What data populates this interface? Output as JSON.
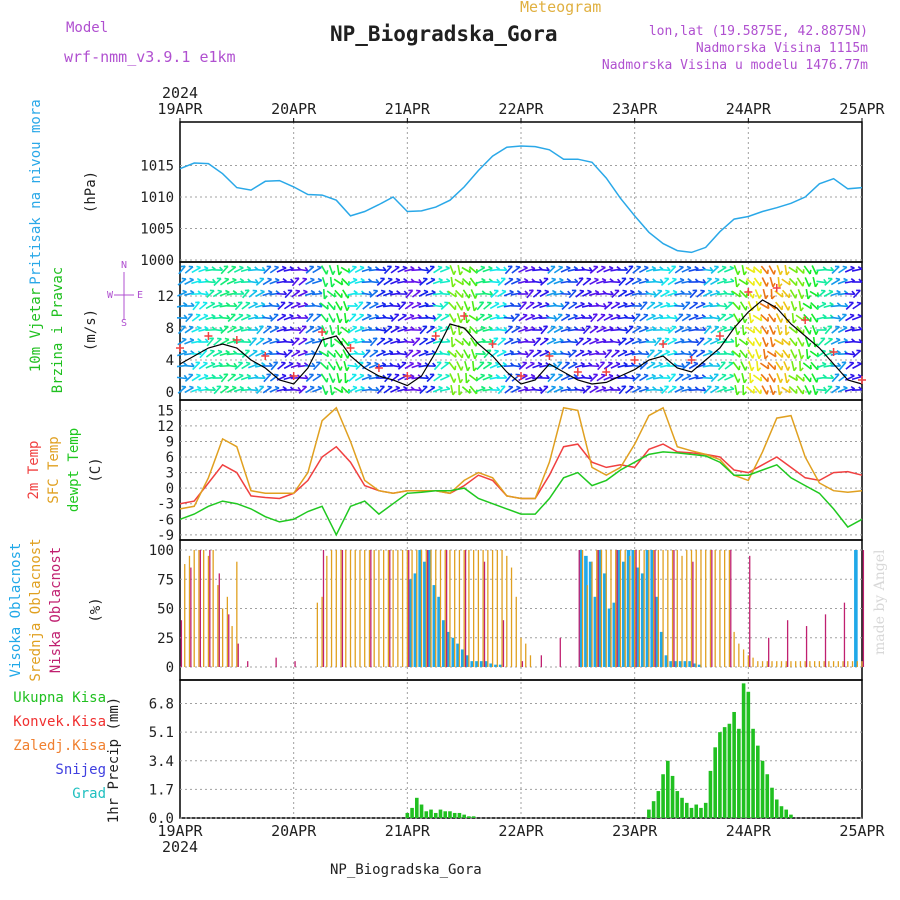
{
  "header": {
    "model_label": "Model",
    "model_name": "wrf-nmm_v3.9.1 e1km",
    "product": "Meteogram",
    "station": "NP_Biogradska_Gora",
    "lonlat": "lon,lat (19.5875E, 42.8875N)",
    "altitude": "Nadmorska Visina 1115m",
    "model_altitude": "Nadmorska Visina u modelu 1476.77m",
    "footer_station": "NP_Biogradska_Gora",
    "watermark": "made by Angel"
  },
  "colors": {
    "pressure": "#2aa8e8",
    "speed_line": "#000000",
    "gust_marker": "#f04040",
    "temp2m": "#f04040",
    "sfc_temp": "#e0a020",
    "dewpoint": "#20c820",
    "cloud_high": "#20a8e8",
    "cloud_mid": "#e0a020",
    "cloud_low": "#c02070",
    "precip_total": "#20c020",
    "precip_conv": "#f03030",
    "precip_frz": "#f08030",
    "precip_snow": "#4040e0",
    "precip_graupel": "#20c0c0",
    "grid": "#a0a0a0",
    "axis_label_purple": "#b050d0"
  },
  "chart_data": [
    {
      "type": "line",
      "panel": "pressure",
      "x_dates": [
        "19APR",
        "20APR",
        "21APR",
        "22APR",
        "23APR",
        "24APR",
        "25APR"
      ],
      "year": "2024",
      "ylabel_main": "Pritisak na nivou mora",
      "ylabel_unit": "(hPa)",
      "ylim": [
        1000,
        1020
      ],
      "yticks": [
        1000,
        1005,
        1010,
        1015
      ],
      "series": [
        {
          "name": "Pritisak na nivou mora",
          "x": [
            0,
            3,
            6,
            9,
            12,
            15,
            18,
            21,
            24,
            27,
            30,
            33,
            36,
            39,
            42,
            45,
            48,
            51,
            54,
            57,
            60,
            63,
            66,
            69,
            72,
            75,
            78,
            81,
            84,
            87,
            90,
            93,
            96,
            99,
            102,
            105,
            108,
            111,
            114,
            117,
            120,
            123,
            126,
            129,
            132,
            135,
            138,
            141,
            144
          ],
          "values": [
            1014.5,
            1015.4,
            1015.3,
            1013.7,
            1011.5,
            1011.1,
            1012.5,
            1012.6,
            1011.6,
            1010.4,
            1010.3,
            1009.5,
            1007.0,
            1007.7,
            1008.8,
            1010.0,
            1007.7,
            1007.8,
            1008.4,
            1009.5,
            1011.6,
            1014.2,
            1016.5,
            1017.9,
            1018.1,
            1018.0,
            1017.5,
            1016.0,
            1016.0,
            1015.5,
            1013.0,
            1009.8,
            1007.0,
            1004.4,
            1002.6,
            1001.5,
            1001.2,
            1002.0,
            1004.5,
            1006.5,
            1006.9,
            1007.7,
            1008.3,
            1009.0,
            1010.0,
            1012.1,
            1012.9,
            1011.3,
            1011.5
          ]
        }
      ]
    },
    {
      "type": "line",
      "panel": "wind",
      "ylabel_main": "10m Vjetar",
      "ylabel_sub": "Brzina i Pravac",
      "ylabel_unit": "(m/s)",
      "compass_labels": [
        "N",
        "W",
        "E",
        "S"
      ],
      "ylim": [
        0,
        14
      ],
      "yticks": [
        0,
        4,
        8,
        12
      ],
      "series": [
        {
          "name": "Brzina",
          "x": [
            0,
            3,
            6,
            9,
            12,
            15,
            18,
            21,
            24,
            27,
            30,
            33,
            36,
            39,
            42,
            45,
            48,
            51,
            54,
            57,
            60,
            63,
            66,
            69,
            72,
            75,
            78,
            81,
            84,
            87,
            90,
            93,
            96,
            99,
            102,
            105,
            108,
            111,
            114,
            117,
            120,
            123,
            126,
            129,
            132,
            135,
            138,
            141,
            144
          ],
          "values": [
            3.5,
            4.5,
            5.5,
            6.0,
            5.5,
            4.0,
            3.0,
            1.5,
            1.0,
            3.0,
            6.5,
            7.0,
            4.5,
            3.0,
            2.0,
            1.5,
            0.8,
            2.0,
            5.0,
            8.5,
            8.0,
            6.0,
            4.5,
            2.5,
            1.0,
            1.5,
            3.5,
            2.5,
            1.5,
            1.0,
            1.2,
            2.0,
            2.8,
            4.0,
            4.5,
            3.0,
            2.5,
            4.0,
            5.5,
            8.0,
            10.0,
            11.5,
            10.5,
            8.5,
            7.0,
            5.5,
            3.5,
            1.5,
            1.0
          ]
        },
        {
          "name": "Udari",
          "x": [
            0,
            6,
            12,
            18,
            24,
            30,
            36,
            42,
            48,
            54,
            60,
            66,
            72,
            78,
            84,
            90,
            96,
            102,
            108,
            114,
            120,
            126,
            132,
            138,
            144
          ],
          "values": [
            5.5,
            7.0,
            6.5,
            4.5,
            2.0,
            7.5,
            5.5,
            3.0,
            2.0,
            7.0,
            9.5,
            6.0,
            2.0,
            4.5,
            2.5,
            2.5,
            4.0,
            6.0,
            4.0,
            7.0,
            12.5,
            13.0,
            9.0,
            5.0,
            1.5
          ]
        }
      ]
    },
    {
      "type": "line",
      "panel": "temperature",
      "ylabel_series": [
        "2m Temp",
        "SFC Temp",
        "dewpt Temp"
      ],
      "ylabel_unit": "(C)",
      "ylim": [
        -10,
        17
      ],
      "yticks": [
        -9,
        -6,
        -3,
        0,
        3,
        6,
        9,
        12,
        15
      ],
      "x": [
        0,
        3,
        6,
        9,
        12,
        15,
        18,
        21,
        24,
        27,
        30,
        33,
        36,
        39,
        42,
        45,
        48,
        51,
        54,
        57,
        60,
        63,
        66,
        69,
        72,
        75,
        78,
        81,
        84,
        87,
        90,
        93,
        96,
        99,
        102,
        105,
        108,
        111,
        114,
        117,
        120,
        123,
        126,
        129,
        132,
        135,
        138,
        141,
        144
      ],
      "series": [
        {
          "name": "2m Temp",
          "values": [
            -3.0,
            -2.5,
            1.0,
            4.5,
            3.0,
            -1.5,
            -1.8,
            -2.0,
            -1.0,
            1.5,
            6.0,
            8.0,
            5.0,
            0.5,
            -0.5,
            -1.0,
            -0.5,
            -0.5,
            -0.5,
            -1.0,
            0.5,
            2.5,
            1.5,
            -1.5,
            -2.0,
            -2.0,
            2.5,
            8.0,
            8.5,
            5.0,
            4.0,
            4.5,
            4.0,
            7.5,
            8.5,
            7.0,
            6.8,
            6.5,
            6.0,
            3.5,
            3.0,
            4.5,
            6.0,
            4.0,
            2.0,
            1.5,
            3.0,
            3.2,
            2.5
          ]
        },
        {
          "name": "SFC Temp",
          "values": [
            -4.0,
            -3.5,
            2.0,
            9.5,
            8.0,
            -0.5,
            -1.0,
            -1.0,
            -1.0,
            3.0,
            13.0,
            15.5,
            9.0,
            1.5,
            -0.5,
            -1.0,
            -0.5,
            -0.5,
            -0.5,
            -1.0,
            1.5,
            3.0,
            2.0,
            -1.5,
            -2.0,
            -2.0,
            5.0,
            15.5,
            15.0,
            4.0,
            2.5,
            4.0,
            8.5,
            14.0,
            15.5,
            8.0,
            7.2,
            6.5,
            5.5,
            2.5,
            1.5,
            7.0,
            13.5,
            14.0,
            6.0,
            1.0,
            -0.5,
            -0.8,
            -0.5
          ]
        },
        {
          "name": "dewpt Temp",
          "values": [
            -6.0,
            -5.0,
            -3.5,
            -2.5,
            -3.0,
            -4.0,
            -5.5,
            -6.5,
            -6.0,
            -4.5,
            -3.5,
            -9.0,
            -3.5,
            -2.5,
            -5.0,
            -3.0,
            -1.0,
            -0.8,
            -0.5,
            -0.5,
            0.0,
            -2.0,
            -3.0,
            -4.0,
            -5.0,
            -5.0,
            -2.0,
            2.0,
            3.0,
            0.5,
            1.5,
            3.5,
            5.0,
            6.5,
            7.0,
            6.8,
            6.5,
            6.2,
            5.0,
            2.5,
            2.5,
            3.5,
            4.5,
            2.0,
            0.5,
            -1.0,
            -4.0,
            -7.5,
            -6.0
          ]
        }
      ]
    },
    {
      "type": "bar",
      "panel": "clouds",
      "ylabel_series": [
        "Visoka Oblacnost",
        "Srednja Oblacnost",
        "Niska Oblacnost"
      ],
      "ylabel_unit": "(%)",
      "ylim": [
        0,
        100
      ],
      "yticks": [
        0,
        25,
        50,
        75,
        100
      ],
      "series": [
        {
          "name": "Visoka Oblacnost",
          "x": [
            49,
            50,
            51,
            52,
            53,
            54,
            55,
            56,
            57,
            58,
            59,
            60,
            61,
            62,
            63,
            64,
            65,
            66,
            67,
            68,
            85,
            86,
            87,
            88,
            89,
            90,
            91,
            92,
            93,
            94,
            95,
            96,
            97,
            98,
            99,
            100,
            101,
            102,
            103,
            104,
            105,
            106,
            107,
            108,
            109,
            110,
            143
          ],
          "values": [
            75,
            80,
            100,
            90,
            100,
            70,
            60,
            40,
            30,
            25,
            20,
            15,
            10,
            5,
            5,
            5,
            5,
            3,
            2,
            2,
            100,
            95,
            90,
            60,
            100,
            80,
            50,
            55,
            100,
            90,
            100,
            100,
            85,
            80,
            100,
            100,
            60,
            30,
            10,
            5,
            5,
            5,
            5,
            5,
            3,
            2,
            100
          ]
        },
        {
          "name": "Srednja Oblacnost",
          "x": [
            1,
            2,
            3,
            4,
            5,
            6,
            7,
            8,
            9,
            10,
            11,
            12,
            29,
            30,
            31,
            32,
            33,
            34,
            35,
            36,
            37,
            38,
            39,
            40,
            41,
            42,
            43,
            44,
            45,
            46,
            47,
            48,
            49,
            50,
            51,
            52,
            53,
            54,
            55,
            56,
            57,
            58,
            59,
            60,
            61,
            62,
            63,
            64,
            65,
            66,
            67,
            68,
            69,
            70,
            71,
            72,
            73,
            74,
            85,
            86,
            87,
            88,
            89,
            90,
            91,
            92,
            93,
            94,
            95,
            96,
            97,
            98,
            99,
            100,
            101,
            102,
            103,
            104,
            105,
            106,
            107,
            108,
            109,
            110,
            111,
            112,
            113,
            114,
            115,
            116,
            117,
            118,
            119,
            120,
            121,
            122,
            123,
            124,
            125,
            126,
            127,
            128,
            129,
            130,
            131,
            132,
            133,
            134,
            135,
            136,
            137,
            138,
            139,
            140,
            141,
            142,
            143,
            144
          ],
          "values": [
            88,
            95,
            100,
            100,
            100,
            95,
            100,
            70,
            50,
            60,
            35,
            90,
            55,
            60,
            95,
            100,
            100,
            100,
            100,
            100,
            100,
            100,
            100,
            100,
            100,
            100,
            100,
            100,
            100,
            100,
            100,
            100,
            100,
            100,
            100,
            100,
            100,
            100,
            100,
            100,
            100,
            100,
            100,
            100,
            100,
            100,
            100,
            100,
            100,
            100,
            100,
            100,
            95,
            85,
            60,
            25,
            20,
            10,
            100,
            70,
            90,
            100,
            100,
            100,
            100,
            100,
            100,
            100,
            95,
            100,
            100,
            100,
            100,
            100,
            100,
            100,
            100,
            100,
            100,
            95,
            100,
            100,
            100,
            100,
            100,
            100,
            100,
            100,
            100,
            100,
            30,
            20,
            15,
            10,
            8,
            5,
            5,
            5,
            5,
            5,
            5,
            5,
            5,
            5,
            5,
            5,
            5,
            5,
            5,
            5,
            5,
            5,
            5,
            5,
            5,
            5,
            5,
            5
          ]
        },
        {
          "name": "Niska Oblacnost",
          "x": [
            0,
            2,
            4,
            6,
            8,
            10,
            12,
            14,
            20,
            24,
            30,
            34,
            40,
            44,
            48,
            52,
            56,
            60,
            64,
            68,
            72,
            76,
            80,
            84,
            88,
            92,
            96,
            100,
            104,
            108,
            112,
            116,
            120,
            124,
            128,
            132,
            136,
            140,
            144
          ],
          "values": [
            40,
            85,
            100,
            100,
            80,
            45,
            20,
            5,
            8,
            5,
            100,
            100,
            100,
            100,
            100,
            100,
            100,
            100,
            90,
            40,
            5,
            10,
            25,
            100,
            100,
            100,
            100,
            100,
            100,
            90,
            100,
            100,
            95,
            25,
            40,
            35,
            45,
            55,
            100
          ]
        }
      ]
    },
    {
      "type": "bar",
      "panel": "precip",
      "ylabel": "1hr Precip (mm)",
      "legend": [
        "Ukupna Kisa",
        "Konvek.Kisa",
        "Zaledj.Kisa",
        "Snijeg",
        "Grad"
      ],
      "ylim": [
        0,
        8.2
      ],
      "yticks": [
        0,
        1.7,
        3.4,
        5.1,
        6.8
      ],
      "x_dates": [
        "19APR",
        "20APR",
        "21APR",
        "22APR",
        "23APR",
        "24APR",
        "25APR"
      ],
      "year": "2024",
      "series": [
        {
          "name": "Ukupna Kisa",
          "x": [
            48,
            49,
            50,
            51,
            52,
            53,
            54,
            55,
            56,
            57,
            58,
            59,
            60,
            61,
            62,
            99,
            100,
            101,
            102,
            103,
            104,
            105,
            106,
            107,
            108,
            109,
            110,
            111,
            112,
            113,
            114,
            115,
            116,
            117,
            118,
            119,
            120,
            121,
            122,
            123,
            124,
            125,
            126,
            127,
            128,
            129
          ],
          "values": [
            0.3,
            0.6,
            1.2,
            0.8,
            0.4,
            0.5,
            0.3,
            0.5,
            0.4,
            0.4,
            0.3,
            0.3,
            0.2,
            0.1,
            0.1,
            0.5,
            1.0,
            1.6,
            2.6,
            3.4,
            2.5,
            1.6,
            1.2,
            0.9,
            0.6,
            0.8,
            0.6,
            0.9,
            2.8,
            4.2,
            5.1,
            5.4,
            5.6,
            6.3,
            5.3,
            8.0,
            7.5,
            5.3,
            4.3,
            3.4,
            2.6,
            1.8,
            1.1,
            0.7,
            0.5,
            0.2
          ]
        },
        {
          "name": "Konvek.Kisa",
          "x": [],
          "values": []
        }
      ]
    }
  ]
}
